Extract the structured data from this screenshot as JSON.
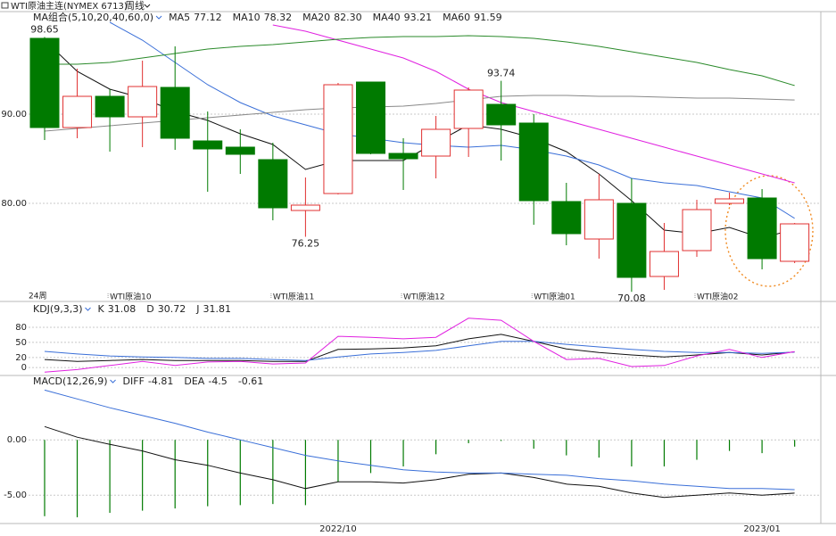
{
  "header": {
    "title": "WTI原油主连(NYMEX 6713)",
    "period": "周线"
  },
  "chart_data": [
    {
      "type": "candlestick",
      "legend_title": "MA组合(5,10,20,40,60,0)",
      "period_label": "24周",
      "up_color": "#e03030",
      "down_color": "#007a00",
      "ylim": [
        69.8,
        101.6
      ],
      "yticks": [
        {
          "value": 80,
          "label": "80.00"
        },
        {
          "value": 90,
          "label": "90.00"
        }
      ],
      "grid": true,
      "open": [
        98.5,
        88.5,
        92.0,
        89.7,
        93.0,
        87.0,
        86.3,
        84.9,
        79.2,
        81.1,
        93.6,
        85.6,
        85.3,
        88.4,
        91.1,
        89.0,
        80.2,
        76.0,
        80.0,
        71.8,
        74.7,
        80.0,
        80.6,
        73.5
      ],
      "high": [
        98.65,
        95.1,
        92.8,
        96.0,
        97.6,
        90.3,
        88.3,
        86.8,
        82.9,
        93.5,
        93.6,
        87.3,
        89.8,
        93.0,
        93.74,
        90.0,
        82.3,
        83.3,
        82.8,
        77.8,
        80.4,
        81.2,
        81.6,
        77.8
      ],
      "low": [
        87.1,
        87.3,
        85.8,
        86.3,
        86.0,
        81.3,
        83.3,
        78.1,
        76.25,
        81.0,
        85.5,
        81.5,
        82.8,
        85.2,
        84.8,
        77.6,
        75.3,
        73.8,
        70.08,
        70.3,
        74.0,
        79.8,
        72.6,
        73.3
      ],
      "close": [
        88.5,
        92.0,
        89.7,
        93.1,
        87.3,
        86.1,
        85.5,
        79.5,
        79.8,
        93.3,
        85.6,
        85.0,
        88.3,
        92.7,
        88.8,
        80.3,
        76.6,
        80.4,
        71.7,
        74.6,
        79.3,
        80.5,
        73.8,
        77.7
      ],
      "high_labels": [
        98.65,
        null,
        null,
        null,
        null,
        null,
        null,
        null,
        null,
        null,
        null,
        null,
        null,
        null,
        93.74,
        null,
        null,
        null,
        null,
        null,
        null,
        null,
        null,
        null
      ],
      "low_labels": [
        null,
        null,
        null,
        null,
        null,
        null,
        null,
        null,
        76.25,
        null,
        null,
        null,
        null,
        null,
        null,
        null,
        null,
        null,
        70.08,
        null,
        null,
        null,
        null,
        null
      ],
      "period_labels": [
        null,
        null,
        "WTI原油10",
        null,
        null,
        null,
        null,
        "WTI原油11",
        null,
        null,
        null,
        "WTI原油12",
        null,
        null,
        null,
        "WTI原油01",
        null,
        null,
        null,
        null,
        "WTI原油02",
        null,
        null,
        null
      ],
      "series": [
        {
          "name": "MA5",
          "color": "#111111",
          "last": 77.12,
          "values": [
            98.3,
            94.8,
            92.8,
            91.8,
            90.3,
            89.3,
            87.8,
            86.6,
            83.8,
            84.8,
            84.8,
            84.8,
            86.8,
            88.8,
            88.3,
            87.3,
            85.8,
            83.3,
            80.3,
            77.0,
            76.6,
            77.3,
            76.1,
            77.12
          ]
        },
        {
          "name": "MA10",
          "color": "#3a6fd8",
          "last": 78.32,
          "values": [
            null,
            null,
            100.3,
            98.3,
            95.8,
            93.3,
            91.3,
            89.8,
            88.8,
            87.8,
            87.3,
            86.8,
            86.5,
            86.3,
            86.5,
            86.0,
            85.3,
            84.3,
            82.8,
            82.3,
            82.0,
            81.3,
            80.6,
            78.32
          ]
        },
        {
          "name": "MA20",
          "color": "#e020e0",
          "last": {
            "value": 82.3,
            "label": "82.30"
          },
          "values": [
            null,
            null,
            null,
            null,
            null,
            null,
            null,
            100.0,
            99.3,
            98.3,
            97.3,
            96.3,
            94.8,
            92.8,
            91.3,
            90.3,
            89.3,
            88.3,
            87.3,
            86.3,
            85.3,
            84.3,
            83.3,
            82.3
          ]
        },
        {
          "name": "MA40",
          "color": "#2a8a2a",
          "last": 93.21,
          "values": [
            95.6,
            95.6,
            95.8,
            96.3,
            96.8,
            97.3,
            97.6,
            97.8,
            98.1,
            98.4,
            98.6,
            98.7,
            98.7,
            98.8,
            98.7,
            98.5,
            98.1,
            97.6,
            97.0,
            96.4,
            95.8,
            95.0,
            94.3,
            93.21
          ]
        },
        {
          "name": "MA60",
          "color": "#888888",
          "last": 91.59,
          "values": [
            88.1,
            88.4,
            88.7,
            89.0,
            89.3,
            89.6,
            89.9,
            90.2,
            90.5,
            90.7,
            90.8,
            90.9,
            91.2,
            91.6,
            92.0,
            92.1,
            92.1,
            92.0,
            92.0,
            91.9,
            91.8,
            91.8,
            91.7,
            91.59
          ]
        }
      ]
    },
    {
      "type": "line",
      "legend_title": "KDJ(9,3,3)",
      "ylim": [
        -14,
        126
      ],
      "yticks": [
        0,
        20,
        50,
        80
      ],
      "grid": true,
      "series": [
        {
          "name": "K",
          "color": "#111111",
          "last": 31.08,
          "values": [
            16,
            12,
            14,
            16,
            14,
            14,
            14,
            12,
            12,
            36,
            37,
            39,
            43,
            57,
            66,
            52,
            37,
            30,
            25,
            21,
            25,
            30,
            25,
            31.08
          ]
        },
        {
          "name": "D",
          "color": "#3a6fd8",
          "last": 30.72,
          "values": [
            32,
            27,
            23,
            21,
            20,
            18,
            18,
            16,
            14,
            21,
            27,
            30,
            34,
            43,
            52,
            52,
            46,
            41,
            36,
            32,
            30,
            30,
            28,
            30.72
          ]
        },
        {
          "name": "J",
          "color": "#e020e0",
          "last": 31.81,
          "values": [
            -9,
            -4,
            4,
            12,
            4,
            11,
            12,
            7,
            9,
            62,
            60,
            57,
            60,
            98,
            94,
            52,
            16,
            18,
            2,
            4,
            23,
            36,
            20,
            31.81
          ]
        }
      ]
    },
    {
      "type": "macd",
      "legend_title": "MACD(12,26,9)",
      "ylim": [
        -7.4,
        5.5
      ],
      "yticks": [
        {
          "value": -5,
          "label": "-5.00"
        },
        {
          "value": 0,
          "label": "0.00"
        }
      ],
      "grid": true,
      "categories": [
        null,
        null,
        null,
        null,
        null,
        null,
        null,
        null,
        null,
        "2022/10",
        null,
        null,
        null,
        null,
        null,
        null,
        null,
        null,
        null,
        null,
        null,
        null,
        "2023/01",
        null
      ],
      "series": [
        {
          "name": "DIFF",
          "color": "#111111",
          "last": -4.81,
          "values": [
            1.2,
            0.24,
            -0.4,
            -1.0,
            -1.8,
            -2.3,
            -3.0,
            -3.6,
            -4.4,
            -3.8,
            -3.8,
            -3.9,
            -3.6,
            -3.1,
            -3.0,
            -3.4,
            -4.0,
            -4.2,
            -4.8,
            -5.2,
            -5.0,
            -4.8,
            -5.0,
            -4.81
          ]
        },
        {
          "name": "DEA",
          "color": "#3a6fd8",
          "last": -4.5,
          "values": [
            4.5,
            3.7,
            2.9,
            2.2,
            1.5,
            0.7,
            0,
            -0.7,
            -1.4,
            -1.9,
            -2.3,
            -2.7,
            -2.9,
            -3.0,
            -3.0,
            -3.1,
            -3.2,
            -3.5,
            -3.7,
            -4.0,
            -4.2,
            -4.4,
            -4.4,
            -4.5
          ]
        }
      ],
      "histogram": {
        "color": "#007a00",
        "last": -0.61,
        "values": [
          -6.9,
          -7.0,
          -6.6,
          -6.4,
          -6.2,
          -6.0,
          -5.9,
          -5.8,
          -5.9,
          -3.8,
          -3.0,
          -2.4,
          -1.3,
          -0.3,
          -0.1,
          -0.8,
          -1.4,
          -1.6,
          -2.4,
          -2.4,
          -1.8,
          -1.0,
          -1.2,
          -0.61
        ]
      }
    }
  ]
}
